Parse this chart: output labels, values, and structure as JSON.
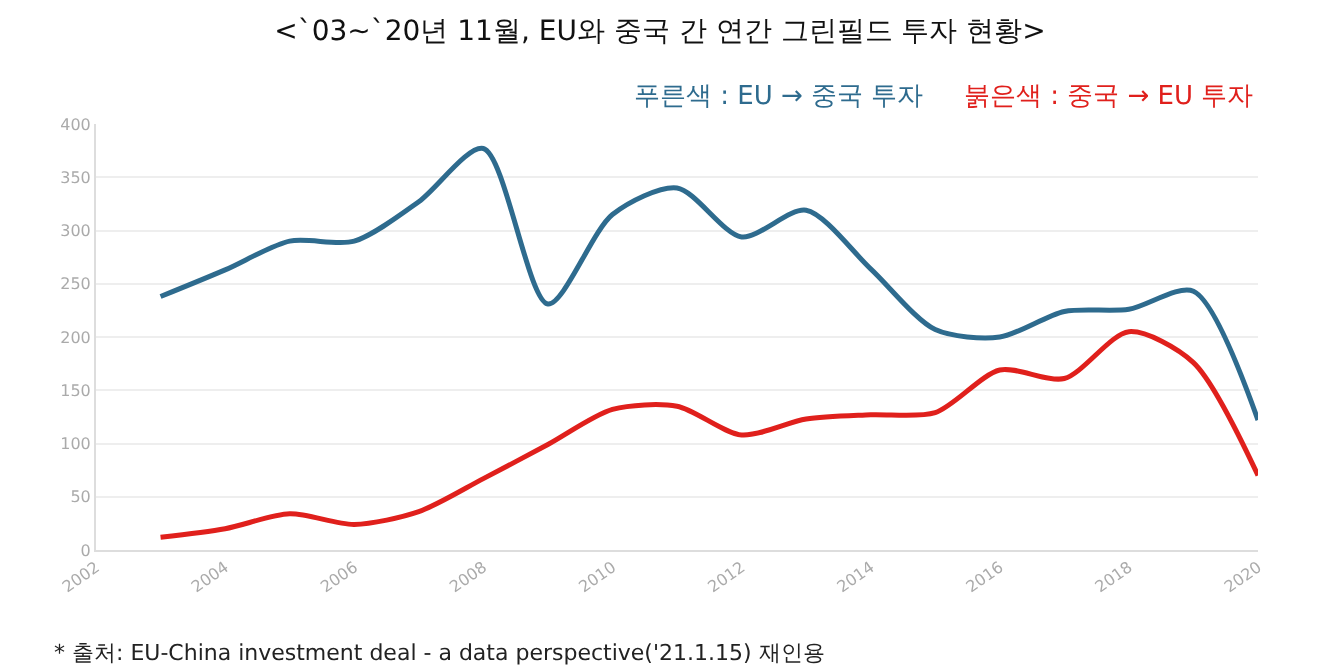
{
  "chart_data": {
    "type": "line",
    "title": "<`03~`20년 11월, EU와 중국 간 연간 그린필드 투자 현황>",
    "x": [
      2003,
      2004,
      2005,
      2006,
      2007,
      2008,
      2009,
      2010,
      2011,
      2012,
      2013,
      2014,
      2015,
      2016,
      2017,
      2018,
      2019,
      2020
    ],
    "series": [
      {
        "name": "푸른색 : EU → 중국 투자",
        "color": "#2e6b8e",
        "values": [
          238,
          263,
          290,
          290,
          327,
          377,
          231,
          315,
          340,
          294,
          319,
          264,
          207,
          200,
          224,
          226,
          243,
          122
        ]
      },
      {
        "name": "붉은색 : 중국 → EU 투자",
        "color": "#e0201c",
        "values": [
          12,
          20,
          34,
          24,
          36,
          67,
          99,
          132,
          135,
          108,
          123,
          127,
          129,
          169,
          161,
          205,
          176,
          70
        ]
      }
    ],
    "xlim": [
      2002,
      2020
    ],
    "xticks": [
      2002,
      2004,
      2006,
      2008,
      2010,
      2012,
      2014,
      2016,
      2018,
      2020
    ],
    "ylim": [
      0,
      400
    ],
    "yticks": [
      0,
      50,
      100,
      150,
      200,
      250,
      300,
      350,
      400
    ],
    "grid": "y",
    "legend": "top right",
    "marker": "none",
    "line_style": "solid",
    "annotations": [
      "* 출처: EU-China investment deal - a data perspective('21.1.15) 재인용"
    ]
  }
}
